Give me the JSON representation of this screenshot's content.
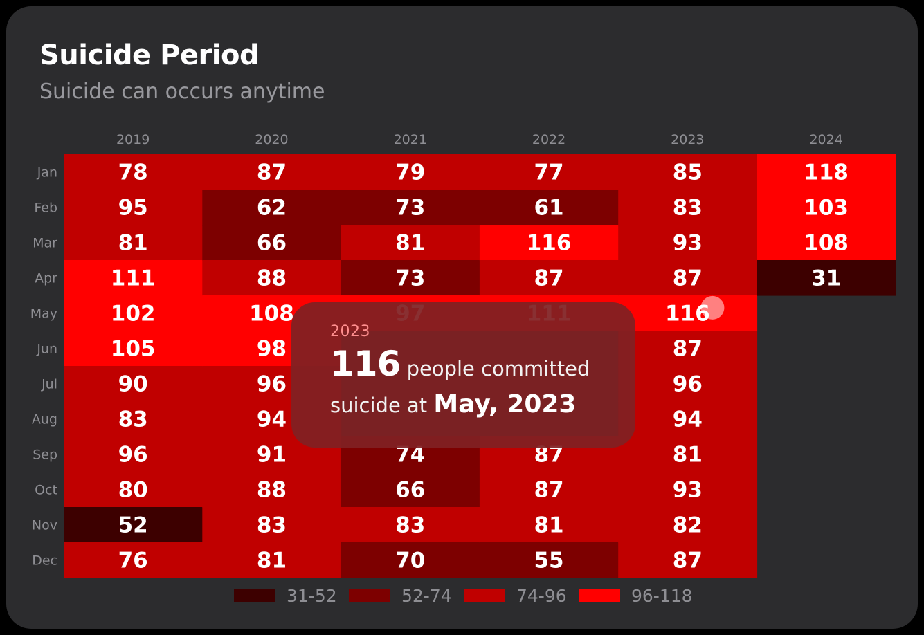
{
  "header": {
    "title": "Suicide Period",
    "subtitle": "Suicide can occurs anytime"
  },
  "tooltip": {
    "year": "2023",
    "value": "116",
    "text_before": " people committed suicide at ",
    "date": "May, 2023"
  },
  "colors": {
    "card_background": "#2c2c2e",
    "text_muted": "#98989d",
    "bins": [
      "#3d0000",
      "#7d0000",
      "#c00000",
      "#ff0000"
    ]
  },
  "chart_data": {
    "type": "heatmap",
    "title": "Suicide Period",
    "subtitle": "Suicide can occurs anytime",
    "x": [
      "2019",
      "2020",
      "2021",
      "2022",
      "2023",
      "2024"
    ],
    "y": [
      "Jan",
      "Feb",
      "Mar",
      "Apr",
      "May",
      "Jun",
      "Jul",
      "Aug",
      "Sep",
      "Oct",
      "Nov",
      "Dec"
    ],
    "values": [
      [
        78,
        95,
        81,
        111,
        102,
        105,
        90,
        83,
        96,
        80,
        52,
        76
      ],
      [
        87,
        62,
        66,
        88,
        108,
        98,
        96,
        94,
        91,
        88,
        83,
        81
      ],
      [
        79,
        73,
        81,
        73,
        97,
        null,
        null,
        null,
        74,
        66,
        83,
        70
      ],
      [
        77,
        61,
        116,
        87,
        111,
        null,
        null,
        null,
        87,
        87,
        81,
        55
      ],
      [
        85,
        83,
        93,
        87,
        116,
        87,
        96,
        94,
        81,
        93,
        82,
        87
      ],
      [
        118,
        103,
        108,
        31,
        null,
        null,
        null,
        null,
        null,
        null,
        null,
        null
      ]
    ],
    "legend": [
      {
        "label": "31-52",
        "min": 31,
        "max": 52
      },
      {
        "label": "52-74",
        "min": 52,
        "max": 74
      },
      {
        "label": "74-96",
        "min": 74,
        "max": 96
      },
      {
        "label": "96-118",
        "min": 96,
        "max": 118
      }
    ],
    "legend_position": "bottom",
    "highlight": {
      "x": "2023",
      "y": "May",
      "value": 116
    }
  }
}
